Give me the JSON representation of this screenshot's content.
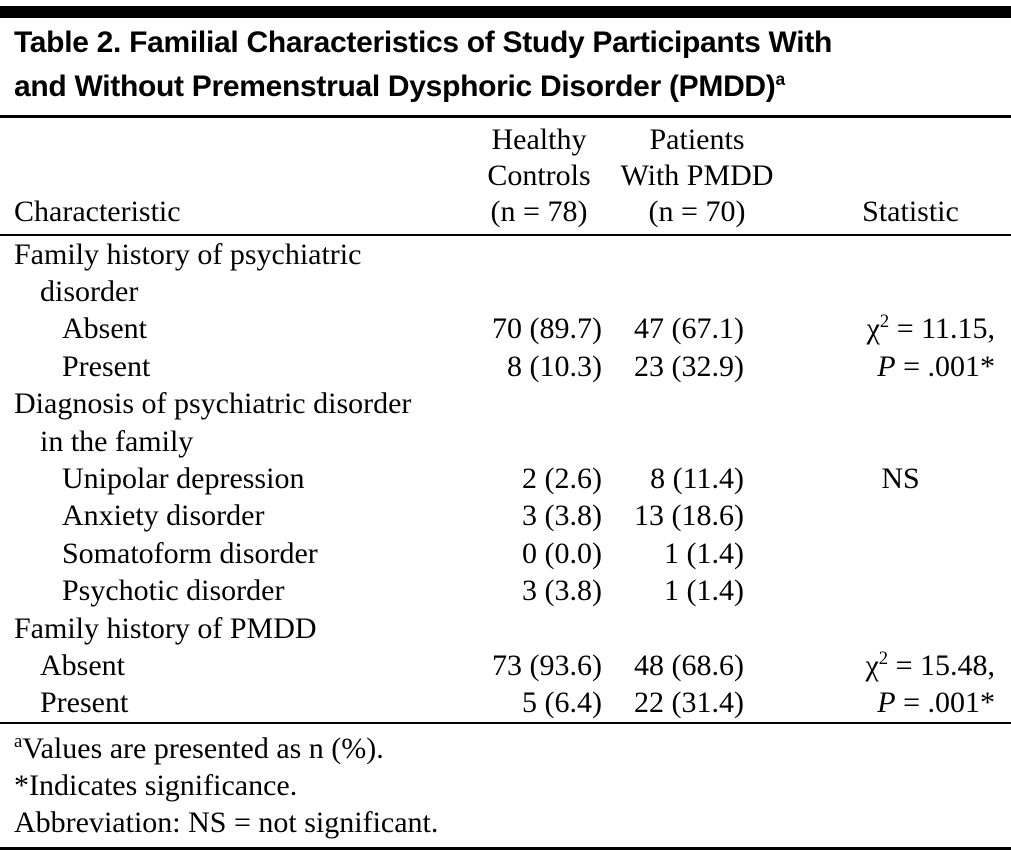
{
  "title": {
    "line1": "Table 2. Familial Characteristics of Study Participants With",
    "line2": "and Without Premenstrual Dysphoric Disorder (PMDD)",
    "sup": "a"
  },
  "header": {
    "characteristic": "Characteristic",
    "healthy": {
      "l1": "Healthy",
      "l2": "Controls",
      "l3": "(n = 78)"
    },
    "pmdd": {
      "l1": "Patients",
      "l2": "With PMDD",
      "l3": "(n = 70)"
    },
    "statistic": "Statistic"
  },
  "rows": [
    {
      "label": "Family history of psychiatric"
    },
    {
      "label": "disorder"
    },
    {
      "label": "Absent",
      "c1": "70 (89.7)",
      "c2": "47 (67.1)",
      "stat": {
        "chi": "χ",
        "sup": "2",
        "rest": " = 11.15,"
      }
    },
    {
      "label": "Present",
      "c1": "8 (10.3)",
      "c2": "23 (32.9)",
      "stat": {
        "p": "P",
        "rest": " = .001*"
      }
    },
    {
      "label": "Diagnosis of psychiatric disorder"
    },
    {
      "label": "in the family"
    },
    {
      "label": "Unipolar depression",
      "c1": "2 (2.6)",
      "c2": "8 (11.4)",
      "stat": {
        "center": "NS"
      }
    },
    {
      "label": "Anxiety disorder",
      "c1": "3 (3.8)",
      "c2": "13 (18.6)"
    },
    {
      "label": "Somatoform disorder",
      "c1": "0 (0.0)",
      "c2": "1 (1.4)"
    },
    {
      "label": "Psychotic disorder",
      "c1": "3 (3.8)",
      "c2": "1 (1.4)"
    },
    {
      "label": "Family history of PMDD"
    },
    {
      "label": "Absent",
      "c1": "73 (93.6)",
      "c2": "48 (68.6)",
      "stat": {
        "chi": "χ",
        "sup": "2",
        "rest": " = 15.48,"
      }
    },
    {
      "label": "Present",
      "c1": "5 (6.4)",
      "c2": "22 (31.4)",
      "stat": {
        "p": "P",
        "rest": " = .001*"
      }
    }
  ],
  "footnotes": [
    {
      "sup": "a",
      "text": "Values are presented as n (%)."
    },
    {
      "text": "*Indicates significance."
    },
    {
      "text": "Abbreviation: NS = not significant."
    }
  ],
  "colors": {
    "rule": "#000000",
    "background": "#ffffff",
    "text": "#000000"
  }
}
